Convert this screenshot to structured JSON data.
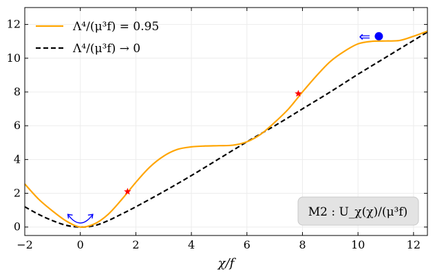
{
  "chart_data": {
    "type": "line",
    "xlabel": "χ/f",
    "ylabel": "",
    "xlim": [
      -2,
      12.5
    ],
    "ylim": [
      -0.5,
      13
    ],
    "xticks": [
      -2,
      0,
      2,
      4,
      6,
      8,
      10,
      12
    ],
    "yticks": [
      0,
      2,
      4,
      6,
      8,
      10,
      12
    ],
    "grid": true,
    "legend_position": "top-left",
    "annotation_box": "M2 : U_χ(χ)/(μ³f)",
    "series": [
      {
        "name": "Λ⁴/(μ³f) = 0.95",
        "style": "solid",
        "color": "#FFA500",
        "x": [
          -2,
          -1.5,
          -1,
          -0.5,
          0,
          0.5,
          1,
          1.5,
          2,
          2.5,
          3,
          3.5,
          4,
          4.5,
          5,
          5.5,
          6,
          6.5,
          7,
          7.5,
          8,
          8.5,
          9,
          9.5,
          10,
          10.5,
          11,
          11.5,
          12,
          12.5
        ],
        "y": [
          2.55,
          1.65,
          0.95,
          0.35,
          0.0,
          0.18,
          0.75,
          1.65,
          2.65,
          3.55,
          4.2,
          4.6,
          4.75,
          4.8,
          4.82,
          4.85,
          5.05,
          5.5,
          6.2,
          7.0,
          8.0,
          8.95,
          9.8,
          10.4,
          10.85,
          11.0,
          11.02,
          11.05,
          11.3,
          11.6
        ]
      },
      {
        "name": "Λ⁴/(μ³f) → 0",
        "style": "dashed",
        "color": "#000000",
        "x": [
          -2,
          -1.5,
          -1,
          -0.5,
          0,
          0.5,
          1,
          1.5,
          2,
          3,
          4,
          5,
          6,
          7,
          8,
          9,
          10,
          11,
          12,
          12.5
        ],
        "y": [
          1.2,
          0.75,
          0.38,
          0.1,
          0.0,
          0.08,
          0.38,
          0.78,
          1.2,
          2.1,
          3.05,
          4.05,
          5.05,
          6.0,
          7.0,
          8.0,
          9.05,
          10.05,
          11.05,
          11.55
        ]
      }
    ],
    "markers": [
      {
        "type": "star",
        "x": 1.7,
        "y": 2.1,
        "color": "#FF0000"
      },
      {
        "type": "star",
        "x": 7.85,
        "y": 7.9,
        "color": "#FF0000"
      },
      {
        "type": "circle",
        "x": 10.75,
        "y": 11.3,
        "color": "#0000FF"
      }
    ],
    "arrow_glyph": "⇐"
  },
  "colors": {
    "solid_series": "#FFA500",
    "dashed_series": "#000000",
    "star": "#FF0000",
    "ball": "#0000FF",
    "box_fill": "#e3e3e3",
    "box_edge": "#c8c8c8"
  }
}
